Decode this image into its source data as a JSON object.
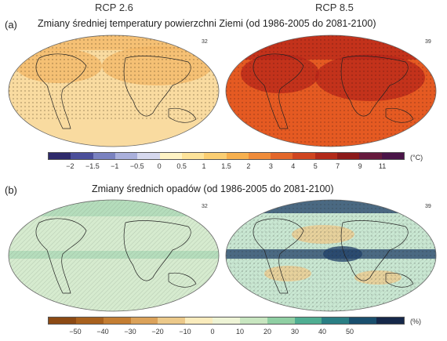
{
  "scenarios": {
    "left": "RCP 2.6",
    "right": "RCP 8.5"
  },
  "panel_a": {
    "letter": "(a)",
    "title": "Zmiany średniej temperatury powierzchni Ziemi (od 1986-2005 do 2081-2100)",
    "model_count_left": "32",
    "model_count_right": "39",
    "colorbar": {
      "ticks": [
        "−2",
        "−1.5",
        "−1",
        "−0.5",
        "0",
        "0.5",
        "1",
        "1.5",
        "2",
        "3",
        "4",
        "5",
        "7",
        "9",
        "11"
      ],
      "unit": "(°C)",
      "colors": [
        "#2e2a6b",
        "#4b4f9a",
        "#7a82c0",
        "#aab0dc",
        "#d6d8ee",
        "#fff3c4",
        "#fde39a",
        "#fbce72",
        "#f7b04e",
        "#ef8c3a",
        "#e3672a",
        "#cf4520",
        "#b22a1a",
        "#8c1a1a",
        "#661a3d",
        "#4a1548"
      ]
    }
  },
  "panel_b": {
    "letter": "(b)",
    "title": "Zmiany średnich opadów (od 1986-2005 do 2081-2100)",
    "model_count_left": "32",
    "model_count_right": "39",
    "colorbar": {
      "ticks": [
        "−50",
        "−40",
        "−30",
        "−20",
        "−10",
        "0",
        "10",
        "20",
        "30",
        "40",
        "50"
      ],
      "unit": "(%)",
      "colors": [
        "#8c4a14",
        "#a8611e",
        "#c47e33",
        "#dba25a",
        "#ecc98a",
        "#faecbd",
        "#eef4d6",
        "#c8e6c0",
        "#8fcfa3",
        "#4fae92",
        "#2a7f84",
        "#1a4f6e",
        "#16284a"
      ]
    }
  },
  "map_colors": {
    "a_left_base": "#f9dba0",
    "a_left_warm": "#f3b766",
    "a_right_base": "#e55a22",
    "a_right_hot": "#b7261a",
    "b_left_base": "#d6ebcf",
    "b_left_wet": "#a9d8b5",
    "b_right_base": "#c9e7d2",
    "b_right_dry": "#f0c98a",
    "b_right_wet": "#1f3f68"
  }
}
